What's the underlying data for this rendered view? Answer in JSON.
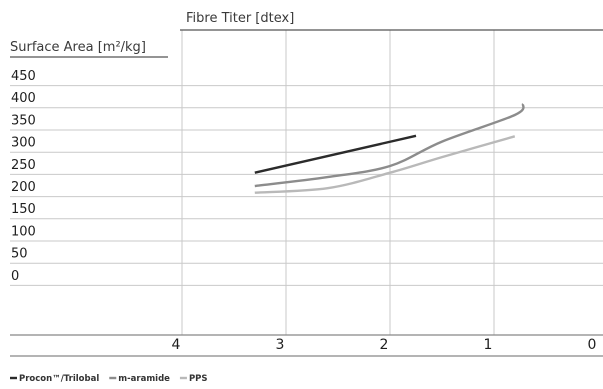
{
  "chart_data": {
    "type": "line",
    "title": "",
    "xlabel": "Fibre Titer [dtex]",
    "ylabel": "Surface Area [m²/kg]",
    "x_ticks": [
      4,
      3,
      2,
      1,
      0
    ],
    "xlim": [
      4,
      0
    ],
    "y_ticks": [
      450,
      400,
      350,
      300,
      250,
      200,
      150,
      100,
      50,
      0
    ],
    "ylim": [
      0,
      450
    ],
    "grid": true,
    "legend_position": "bottom-left",
    "series": [
      {
        "name": "Procon™/Trilobal",
        "color": "#2b2b2b",
        "x": [
          3.3,
          1.75
        ],
        "y": [
          230,
          313
        ]
      },
      {
        "name": "m-aramide",
        "color": "#8c8c8c",
        "x": [
          3.3,
          2.6,
          2.0,
          1.5,
          0.8,
          0.72
        ],
        "y": [
          200,
          220,
          245,
          300,
          360,
          385
        ]
      },
      {
        "name": "PPS",
        "color": "#b9b9b9",
        "x": [
          3.3,
          2.6,
          2.0,
          1.5,
          0.8
        ],
        "y": [
          185,
          195,
          230,
          265,
          312
        ]
      }
    ]
  }
}
